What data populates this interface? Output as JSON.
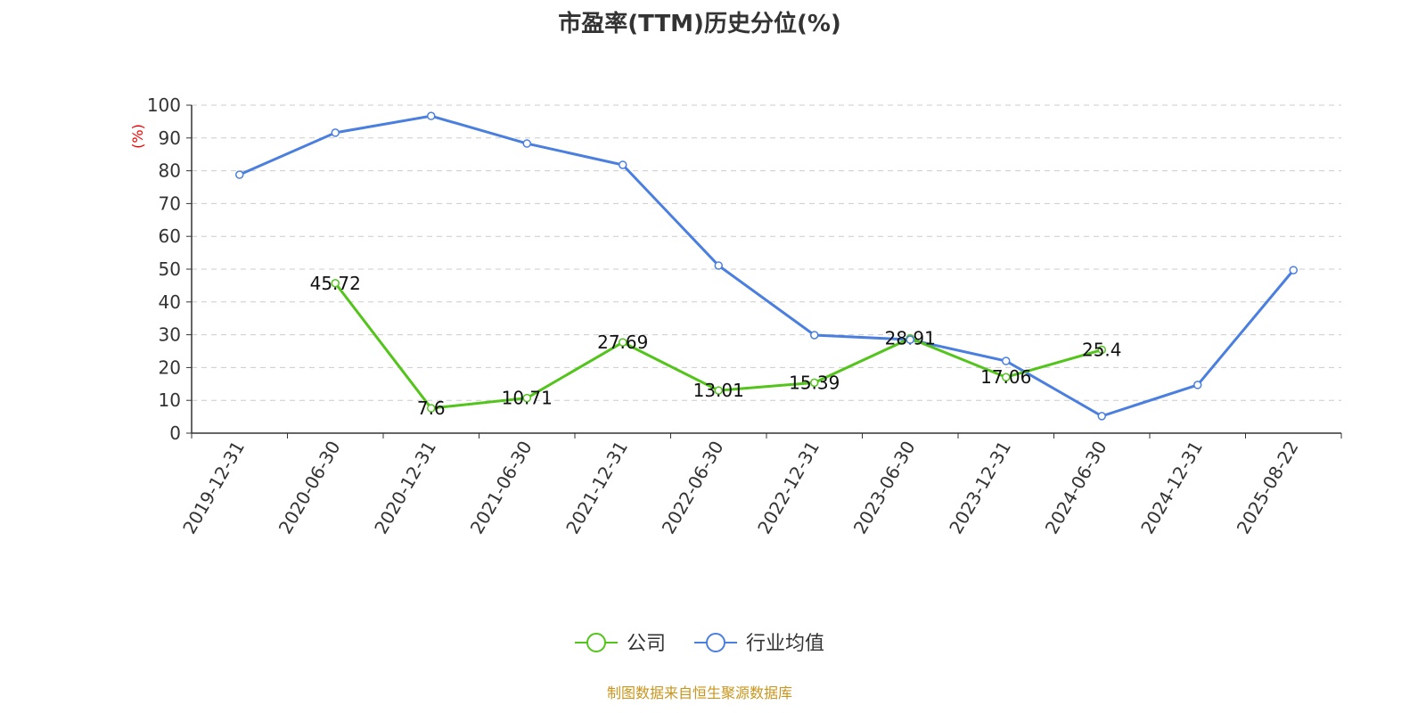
{
  "chart_data": {
    "type": "line",
    "title": "市盈率(TTM)历史分位(%)",
    "ylabel": "(%)",
    "ylim": [
      0,
      100
    ],
    "yticks": [
      0,
      10,
      20,
      30,
      40,
      50,
      60,
      70,
      80,
      90,
      100
    ],
    "grid": true,
    "legend_position": "bottom",
    "categories": [
      "2019-12-31",
      "2020-06-30",
      "2020-12-31",
      "2021-06-30",
      "2021-12-31",
      "2022-06-30",
      "2022-12-31",
      "2023-06-30",
      "2023-12-31",
      "2024-06-30",
      "2024-12-31",
      "2025-08-22"
    ],
    "series": [
      {
        "name": "公司",
        "color": "#52c41a",
        "show_labels": true,
        "values": [
          null,
          45.72,
          7.6,
          10.71,
          27.69,
          13.01,
          15.39,
          28.91,
          17.06,
          25.4,
          null,
          null
        ]
      },
      {
        "name": "行业均值",
        "color": "#4a7fe0",
        "show_labels": false,
        "values": [
          78.8,
          91.6,
          96.7,
          88.3,
          81.8,
          51.1,
          29.9,
          28.5,
          22.0,
          5.2,
          14.7,
          49.7
        ]
      }
    ]
  },
  "source": "制图数据来自恒生聚源数据库"
}
